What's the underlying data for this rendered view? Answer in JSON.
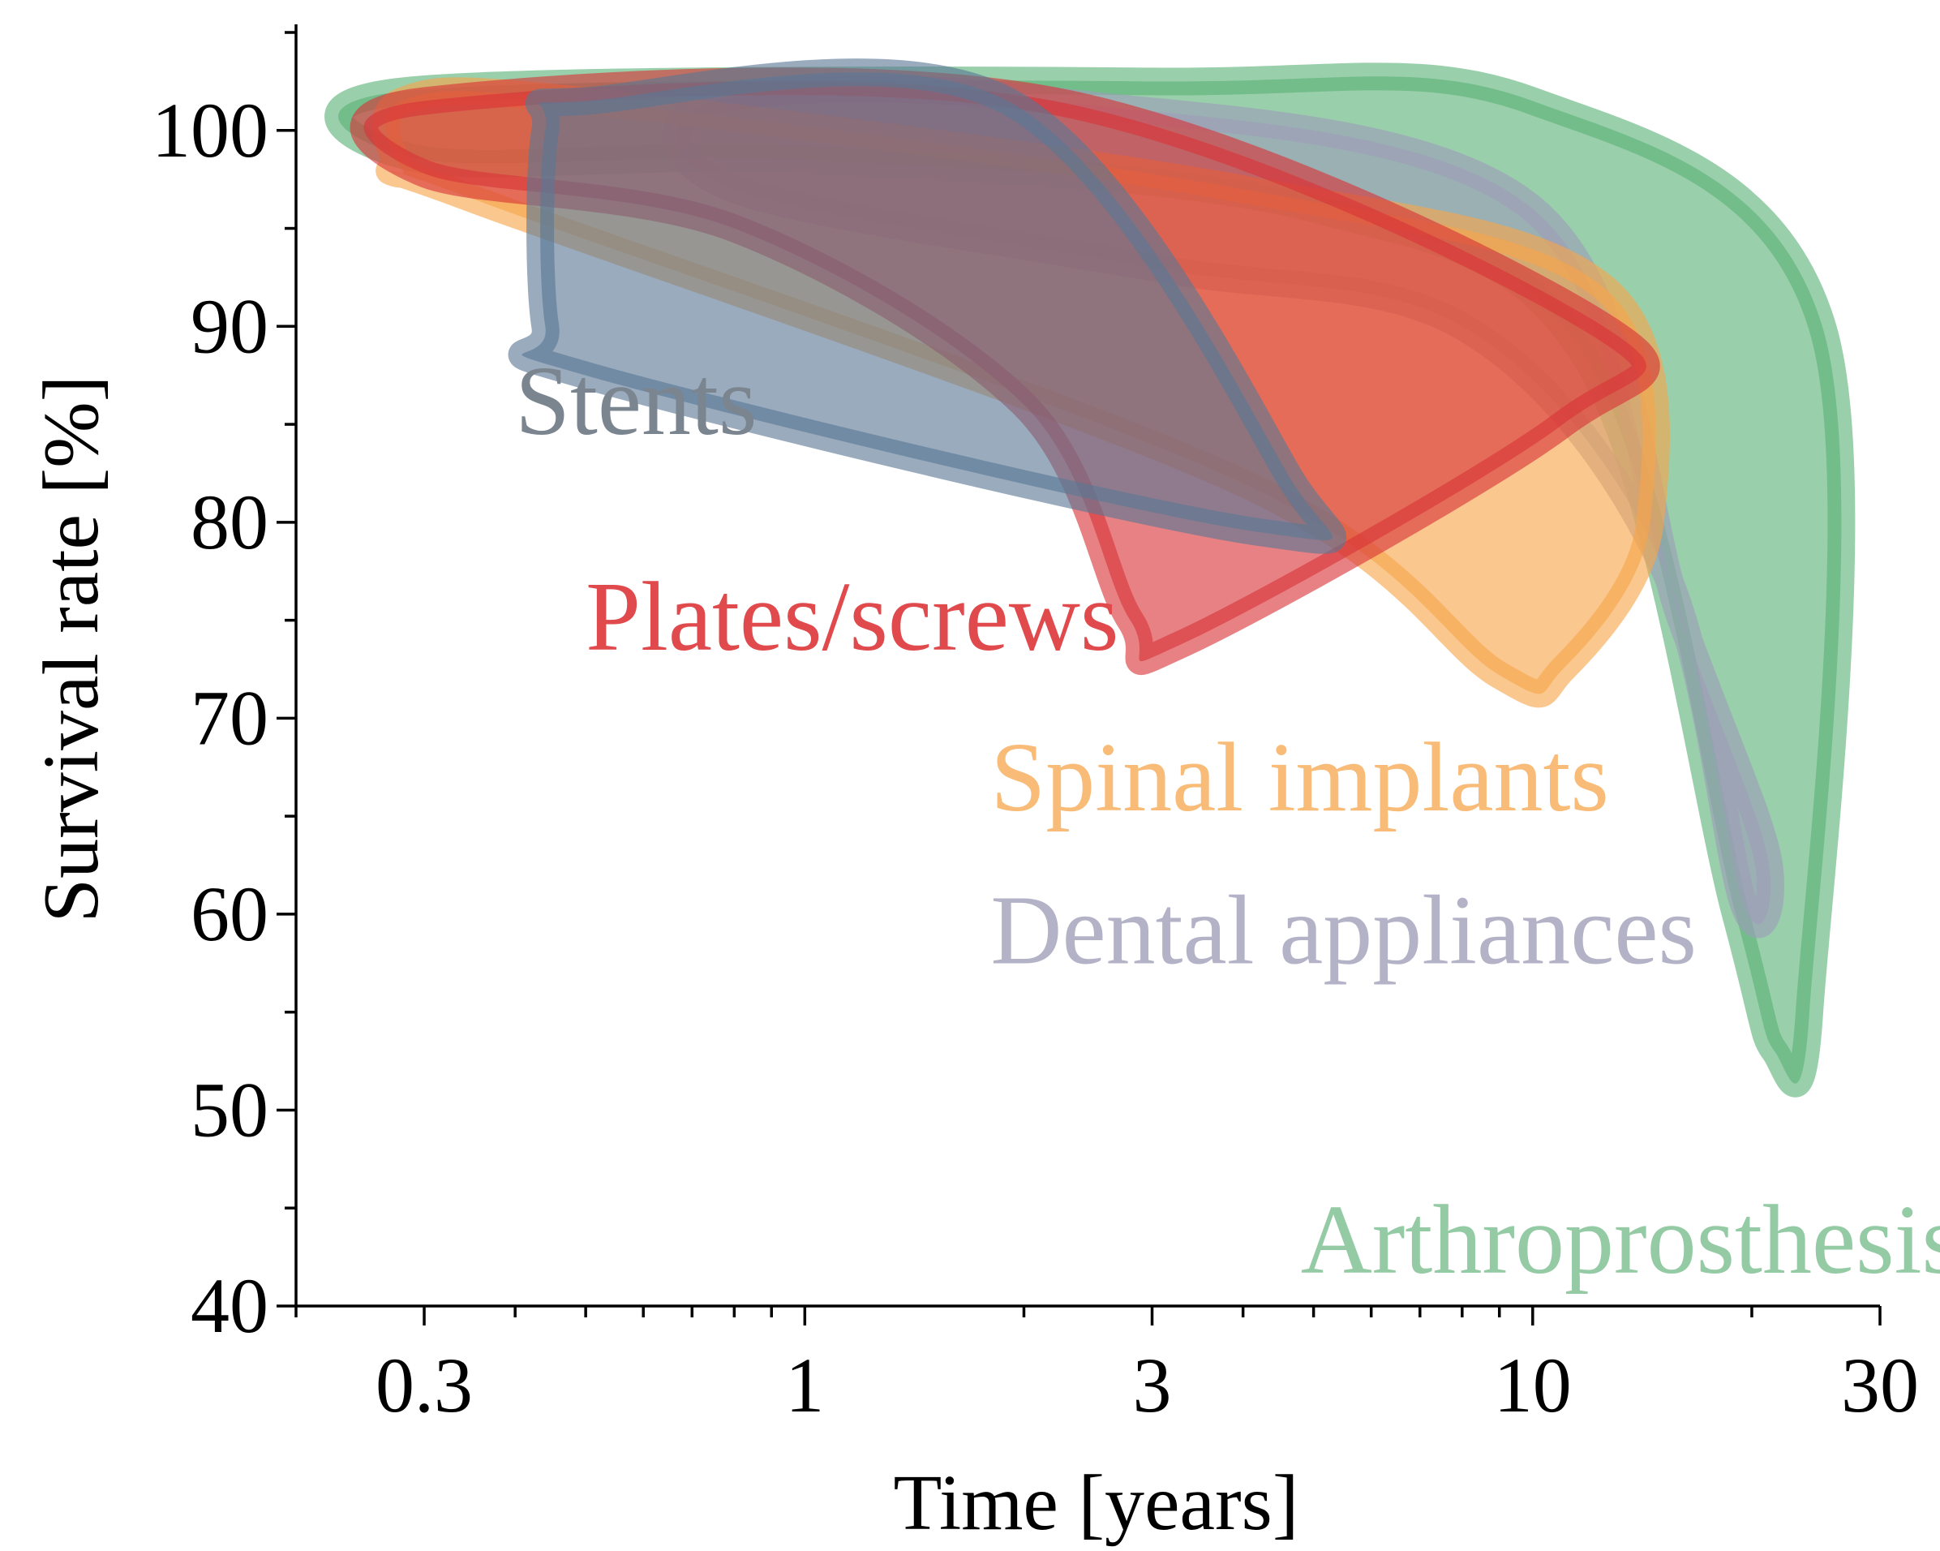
{
  "chart_data": {
    "type": "area",
    "title": "",
    "xlabel": "Time [years]",
    "ylabel": "Survival rate [%]",
    "xscale": "log",
    "xlim": [
      0.2,
      30
    ],
    "ylim": [
      40,
      105
    ],
    "xticks": [
      0.3,
      1,
      3,
      10,
      30
    ],
    "xtick_labels": [
      "0.3",
      "1",
      "3",
      "10",
      "30"
    ],
    "yticks": [
      40,
      50,
      60,
      70,
      80,
      90,
      100
    ],
    "ytick_labels": [
      "40",
      "50",
      "60",
      "70",
      "80",
      "90",
      "100"
    ],
    "grid": false,
    "series": [
      {
        "name": "Stents",
        "color": "#5a7795",
        "region": [
          [
            0.5,
            101.5
          ],
          [
            1.9,
            101.5
          ],
          [
            4.6,
            82.5
          ],
          [
            4.2,
            79.5
          ],
          [
            0.5,
            87.5
          ],
          [
            0.44,
            90
          ],
          [
            0.44,
            100
          ]
        ]
      },
      {
        "name": "Plates/screws",
        "color": "#d93437",
        "region": [
          [
            0.3,
            101.5
          ],
          [
            2.2,
            101.5
          ],
          [
            12.5,
            90
          ],
          [
            11,
            85
          ],
          [
            3.3,
            73.8
          ],
          [
            2.8,
            75
          ],
          [
            2.0,
            86
          ],
          [
            0.8,
            95
          ],
          [
            0.3,
            97.8
          ]
        ]
      },
      {
        "name": "Spinal implants",
        "color": "#f7a54a",
        "region": [
          [
            0.28,
            101.5
          ],
          [
            0.5,
            101.5
          ],
          [
            4,
            97
          ],
          [
            12.5,
            92
          ],
          [
            14.5,
            80
          ],
          [
            11,
            72.5
          ],
          [
            9,
            72.2
          ],
          [
            4,
            82
          ],
          [
            0.35,
            96.5
          ],
          [
            0.28,
            98
          ]
        ]
      },
      {
        "name": "Dental appliances",
        "color": "#9d9cb8",
        "region": [
          [
            0.75,
            101.5
          ],
          [
            2.2,
            101.5
          ],
          [
            10,
            96
          ],
          [
            16,
            75
          ],
          [
            21,
            63
          ],
          [
            19.5,
            60.5
          ],
          [
            15,
            78
          ],
          [
            8,
            90
          ],
          [
            3,
            93
          ],
          [
            0.8,
            97
          ]
        ]
      },
      {
        "name": "Arthroprosthesis",
        "color": "#5cb278",
        "region": [
          [
            0.28,
            102
          ],
          [
            3,
            102.5
          ],
          [
            10,
            101.5
          ],
          [
            25,
            90
          ],
          [
            24,
            55
          ],
          [
            21.5,
            53
          ],
          [
            19,
            60
          ],
          [
            12,
            88
          ],
          [
            5,
            96
          ],
          [
            1,
            98.5
          ],
          [
            0.3,
            98.5
          ]
        ]
      }
    ],
    "annotations": [
      {
        "text": "Stents",
        "x": 0.4,
        "y": 84.5,
        "color": "#7b8590"
      },
      {
        "text": "Plates/screws",
        "x": 0.5,
        "y": 73.5,
        "color": "#e04a4d"
      },
      {
        "text": "Spinal implants",
        "x": 1.8,
        "y": 65.3,
        "color": "#f8bc78"
      },
      {
        "text": "Dental appliances",
        "x": 1.8,
        "y": 57.5,
        "color": "#b3b2c6"
      },
      {
        "text": "Arthroprosthesis",
        "x": 4.8,
        "y": 41.7,
        "color": "#94cba4"
      }
    ]
  }
}
